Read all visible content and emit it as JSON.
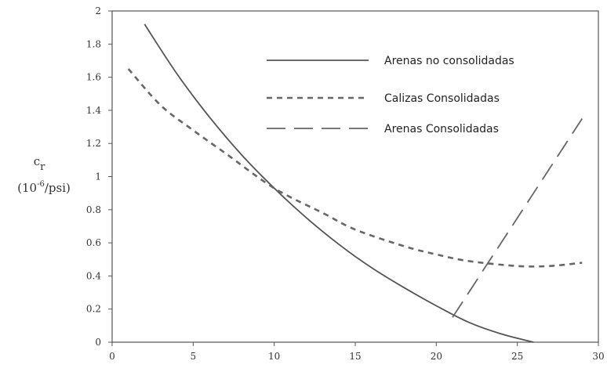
{
  "chart_data": {
    "type": "line",
    "ylabel": {
      "symbol": "c",
      "subscript": "r",
      "unit_prefix": "(10",
      "unit_exponent": "-6",
      "unit_suffix": "/psi)"
    },
    "xlim": [
      0,
      30
    ],
    "ylim": [
      0,
      2
    ],
    "xticks": [
      "0",
      "5",
      "10",
      "15",
      "20",
      "25",
      "30"
    ],
    "yticks": [
      "0",
      "0.2",
      "0.4",
      "0.6",
      "0.8",
      "1",
      "1.2",
      "1.4",
      "1.6",
      "1.8",
      "2"
    ],
    "grid": false,
    "legend_position": "top-right",
    "series": [
      {
        "name": "Arenas no consolidadas",
        "style": "solid",
        "color": "#555555",
        "x": [
          2,
          4,
          6,
          8,
          10,
          12,
          14,
          16,
          18,
          20,
          22,
          24,
          26
        ],
        "y": [
          1.92,
          1.62,
          1.36,
          1.13,
          0.93,
          0.75,
          0.59,
          0.45,
          0.33,
          0.22,
          0.12,
          0.05,
          0.0
        ]
      },
      {
        "name": "Calizas Consolidadas",
        "style": "dotted",
        "color": "#666666",
        "x": [
          1,
          3,
          5,
          7,
          10,
          13,
          15,
          18,
          20,
          22,
          25,
          27,
          29
        ],
        "y": [
          1.65,
          1.43,
          1.28,
          1.14,
          0.93,
          0.78,
          0.68,
          0.58,
          0.53,
          0.49,
          0.46,
          0.46,
          0.48
        ]
      },
      {
        "name": "Arenas Consolidadas",
        "style": "dashed",
        "color": "#666666",
        "x": [
          21,
          23,
          25,
          27,
          29
        ],
        "y": [
          0.15,
          0.45,
          0.75,
          1.05,
          1.35
        ]
      }
    ]
  }
}
